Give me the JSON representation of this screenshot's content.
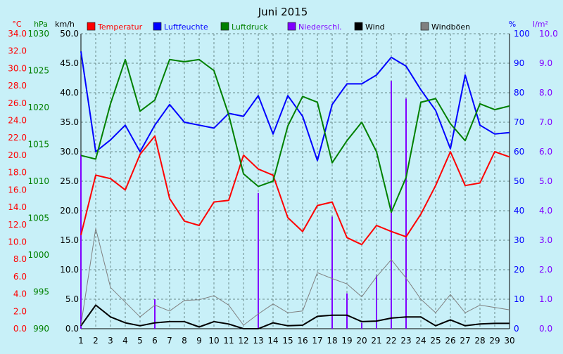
{
  "chart_data": {
    "type": "line",
    "title": "Juni 2015",
    "background": "#c8f0f8",
    "grid": true,
    "x": [
      1,
      2,
      3,
      4,
      5,
      6,
      7,
      8,
      9,
      10,
      11,
      12,
      13,
      14,
      15,
      16,
      17,
      18,
      19,
      20,
      21,
      22,
      23,
      24,
      25,
      26,
      27,
      28,
      29,
      30
    ],
    "axes": {
      "temperature": {
        "unit": "°C",
        "range": [
          0,
          34
        ],
        "ticks": [
          "0.0",
          "2.0",
          "4.0",
          "6.0",
          "8.0",
          "10.0",
          "12.0",
          "14.0",
          "16.0",
          "18.0",
          "20.0",
          "22.0",
          "24.0",
          "26.0",
          "28.0",
          "30.0",
          "32.0",
          "34.0"
        ],
        "color": "#ff0000"
      },
      "pressure": {
        "unit": "hPa",
        "range": [
          990,
          1030
        ],
        "ticks": [
          "990",
          "995",
          "1000",
          "1005",
          "1010",
          "1015",
          "1020",
          "1025",
          "1030"
        ],
        "color": "#008000"
      },
      "wind": {
        "unit": "km/h",
        "range": [
          0,
          50
        ],
        "ticks": [
          "0.0",
          "5.0",
          "10.0",
          "15.0",
          "20.0",
          "25.0",
          "30.0",
          "35.0",
          "40.0",
          "45.0",
          "50.0"
        ],
        "color": "#000000"
      },
      "humidity": {
        "unit": "%",
        "range": [
          0,
          100
        ],
        "ticks": [
          "0",
          "10",
          "20",
          "30",
          "40",
          "50",
          "60",
          "70",
          "80",
          "90",
          "100"
        ],
        "color": "#0000ff"
      },
      "precipitation": {
        "unit": "l/m²",
        "range": [
          0,
          10
        ],
        "ticks": [
          "0.0",
          "1.0",
          "2.0",
          "3.0",
          "4.0",
          "5.0",
          "6.0",
          "7.0",
          "8.0",
          "9.0",
          "10.0"
        ],
        "color": "#8000ff"
      }
    },
    "series": [
      {
        "name": "Temperatur",
        "axis": "temperature",
        "color": "#ff0000",
        "kind": "line",
        "values": [
          10.8,
          17.7,
          17.3,
          16.0,
          20.1,
          22.2,
          15.0,
          12.4,
          11.9,
          14.6,
          14.8,
          20.0,
          18.4,
          17.7,
          12.8,
          11.2,
          14.2,
          14.6,
          10.5,
          9.7,
          11.9,
          11.2,
          10.6,
          13.2,
          16.5,
          20.4,
          16.5,
          16.8,
          20.4,
          19.8
        ]
      },
      {
        "name": "Luftfeuchte",
        "axis": "humidity",
        "color": "#0000ff",
        "kind": "line",
        "values": [
          94,
          60,
          64,
          69,
          60,
          69,
          76,
          70,
          69,
          68,
          73,
          72,
          79,
          66,
          79,
          72,
          57,
          76,
          83,
          83,
          86,
          92,
          89,
          81,
          74,
          61,
          86,
          69,
          66,
          66.5
        ]
      },
      {
        "name": "Luftdruck",
        "axis": "pressure",
        "color": "#008000",
        "kind": "line",
        "values": [
          1013.5,
          1013.0,
          1020.5,
          1026.5,
          1019.5,
          1021.0,
          1026.5,
          1026.2,
          1026.5,
          1025.0,
          1019.0,
          1011.0,
          1009.3,
          1010.0,
          1017.5,
          1021.5,
          1020.7,
          1012.5,
          1015.5,
          1018.0,
          1014.0,
          1005.8,
          1010.5,
          1020.7,
          1021.2,
          1017.8,
          1015.5,
          1020.5,
          1019.7,
          1020.2
        ]
      },
      {
        "name": "Niederschl.",
        "axis": "precipitation",
        "color": "#8000ff",
        "kind": "bar",
        "values": [
          5.9,
          0,
          0,
          0,
          0,
          1.0,
          0,
          0,
          0,
          0,
          0,
          0,
          4.6,
          0,
          0,
          0,
          0,
          3.8,
          1.2,
          0.2,
          1.8,
          8.4,
          7.8,
          0,
          0,
          0,
          0,
          0,
          0,
          0
        ]
      },
      {
        "name": "Wind",
        "axis": "wind",
        "color": "#000000",
        "kind": "line",
        "values": [
          0.5,
          4.0,
          2.0,
          1.0,
          0.5,
          1.0,
          1.2,
          1.2,
          0.3,
          1.2,
          0.8,
          0.0,
          0.0,
          1.0,
          0.5,
          0.6,
          2.1,
          2.3,
          2.3,
          1.2,
          1.3,
          1.8,
          2.0,
          2.0,
          0.5,
          1.5,
          0.5,
          0.8,
          0.9,
          0.9
        ]
      },
      {
        "name": "Windböen",
        "axis": "wind",
        "color": "#808080",
        "kind": "line",
        "values": [
          0.6,
          17.0,
          7.0,
          4.5,
          2.0,
          4.0,
          3.0,
          4.8,
          4.9,
          5.6,
          4.0,
          0.6,
          2.5,
          4.2,
          2.7,
          3.0,
          9.5,
          8.5,
          7.6,
          5.4,
          8.8,
          11.7,
          8.6,
          5.0,
          2.7,
          5.8,
          2.7,
          4.0,
          3.6,
          3.2
        ]
      }
    ]
  }
}
